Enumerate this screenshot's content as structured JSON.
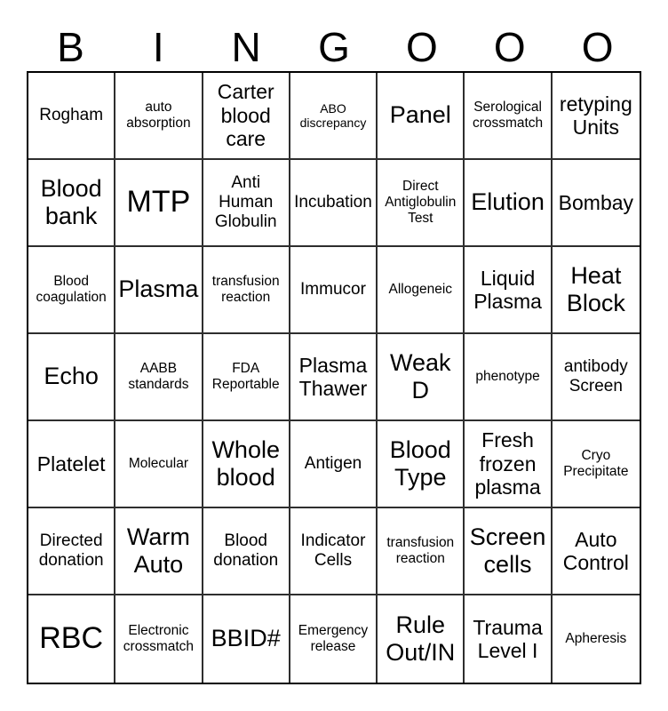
{
  "title": {
    "letters": [
      "B",
      "I",
      "N",
      "G",
      "O",
      "O",
      "O"
    ]
  },
  "colors": {
    "background": "#ffffff",
    "grid_line": "#000000",
    "text": "#000000"
  },
  "grid": {
    "rows": [
      [
        {
          "text": "Rogham",
          "size": "md"
        },
        {
          "text": "auto absorption",
          "size": "sm"
        },
        {
          "text": "Carter blood care",
          "size": "lg"
        },
        {
          "text": "ABO discrepancy",
          "size": "xs"
        },
        {
          "text": "Panel",
          "size": "xl"
        },
        {
          "text": "Serological crossmatch",
          "size": "sm"
        },
        {
          "text": "retyping Units",
          "size": "lg"
        }
      ],
      [
        {
          "text": "Blood bank",
          "size": "xl"
        },
        {
          "text": "MTP",
          "size": "xxl"
        },
        {
          "text": "Anti Human Globulin",
          "size": "md"
        },
        {
          "text": "Incubation",
          "size": "md"
        },
        {
          "text": "Direct Antiglobulin Test",
          "size": "sm"
        },
        {
          "text": "Elution",
          "size": "xl"
        },
        {
          "text": "Bombay",
          "size": "lg"
        }
      ],
      [
        {
          "text": "Blood coagulation",
          "size": "sm"
        },
        {
          "text": "Plasma",
          "size": "xl"
        },
        {
          "text": "transfusion reaction",
          "size": "sm"
        },
        {
          "text": "Immucor",
          "size": "md"
        },
        {
          "text": "Allogeneic",
          "size": "sm"
        },
        {
          "text": "Liquid Plasma",
          "size": "lg"
        },
        {
          "text": "Heat Block",
          "size": "xl"
        }
      ],
      [
        {
          "text": "Echo",
          "size": "xl"
        },
        {
          "text": "AABB standards",
          "size": "sm"
        },
        {
          "text": "FDA Reportable",
          "size": "sm"
        },
        {
          "text": "Plasma Thawer",
          "size": "lg"
        },
        {
          "text": "Weak D",
          "size": "xl"
        },
        {
          "text": "phenotype",
          "size": "sm"
        },
        {
          "text": "antibody Screen",
          "size": "md"
        }
      ],
      [
        {
          "text": "Platelet",
          "size": "lg"
        },
        {
          "text": "Molecular",
          "size": "sm"
        },
        {
          "text": "Whole blood",
          "size": "xl"
        },
        {
          "text": "Antigen",
          "size": "md"
        },
        {
          "text": "Blood Type",
          "size": "xl"
        },
        {
          "text": "Fresh frozen plasma",
          "size": "lg"
        },
        {
          "text": "Cryo Precipitate",
          "size": "sm"
        }
      ],
      [
        {
          "text": "Directed donation",
          "size": "md"
        },
        {
          "text": "Warm Auto",
          "size": "xl"
        },
        {
          "text": "Blood donation",
          "size": "md"
        },
        {
          "text": "Indicator Cells",
          "size": "md"
        },
        {
          "text": "transfusion reaction",
          "size": "sm"
        },
        {
          "text": "Screen cells",
          "size": "xl"
        },
        {
          "text": "Auto Control",
          "size": "lg"
        }
      ],
      [
        {
          "text": "RBC",
          "size": "xxl"
        },
        {
          "text": "Electronic crossmatch",
          "size": "sm"
        },
        {
          "text": "BBID#",
          "size": "xl"
        },
        {
          "text": "Emergency release",
          "size": "sm"
        },
        {
          "text": "Rule Out/IN",
          "size": "xl"
        },
        {
          "text": "Trauma Level I",
          "size": "lg"
        },
        {
          "text": "Apheresis",
          "size": "sm"
        }
      ]
    ]
  }
}
